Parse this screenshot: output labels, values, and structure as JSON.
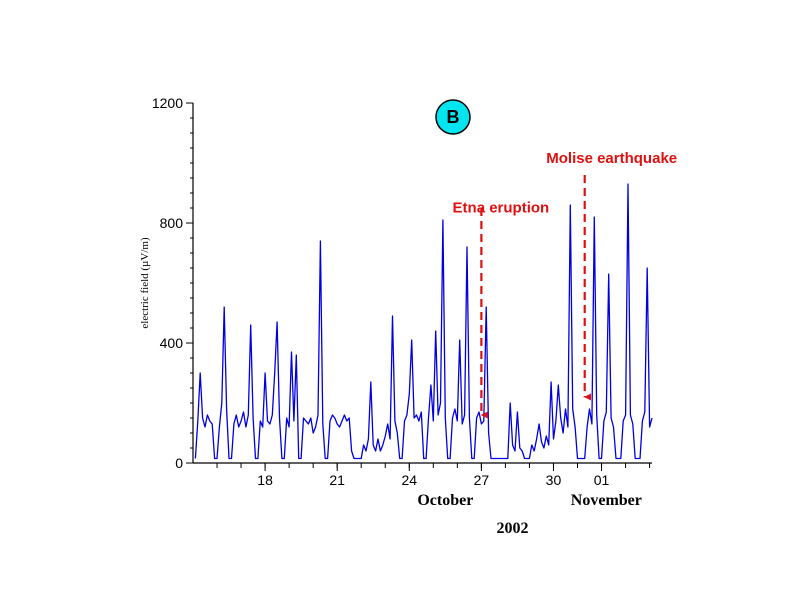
{
  "chart_data": {
    "type": "line",
    "panel_label": "B",
    "ylabel": "electric field (µV/m)",
    "ylim": [
      0,
      1200
    ],
    "yticks": [
      0,
      400,
      800,
      1200
    ],
    "xlim_day": [
      15,
      34.1
    ],
    "xticks": [
      {
        "day": 18,
        "label": "18"
      },
      {
        "day": 21,
        "label": "21"
      },
      {
        "day": 24,
        "label": "24"
      },
      {
        "day": 27,
        "label": "27"
      },
      {
        "day": 30,
        "label": "30"
      },
      {
        "day": 32,
        "label": "01"
      }
    ],
    "minor_tick_days": [
      16,
      17,
      18,
      19,
      20,
      21,
      22,
      23,
      24,
      25,
      26,
      27,
      28,
      29,
      30,
      31,
      32,
      33,
      34
    ],
    "month_labels": [
      {
        "label": "October",
        "day": 25.5
      },
      {
        "label": "November",
        "day": 32.2
      }
    ],
    "year_label": "2002",
    "series": [
      {
        "color": "#0000e0",
        "points": [
          [
            15.1,
            15
          ],
          [
            15.2,
            140
          ],
          [
            15.3,
            300
          ],
          [
            15.4,
            150
          ],
          [
            15.5,
            120
          ],
          [
            15.6,
            160
          ],
          [
            15.7,
            140
          ],
          [
            15.8,
            130
          ],
          [
            15.9,
            15
          ],
          [
            16.0,
            15
          ],
          [
            16.1,
            120
          ],
          [
            16.2,
            200
          ],
          [
            16.3,
            520
          ],
          [
            16.4,
            180
          ],
          [
            16.5,
            15
          ],
          [
            16.6,
            15
          ],
          [
            16.7,
            130
          ],
          [
            16.8,
            160
          ],
          [
            16.9,
            120
          ],
          [
            17.0,
            140
          ],
          [
            17.1,
            170
          ],
          [
            17.2,
            120
          ],
          [
            17.3,
            160
          ],
          [
            17.4,
            460
          ],
          [
            17.5,
            150
          ],
          [
            17.6,
            15
          ],
          [
            17.7,
            15
          ],
          [
            17.8,
            140
          ],
          [
            17.9,
            120
          ],
          [
            18.0,
            300
          ],
          [
            18.1,
            140
          ],
          [
            18.2,
            130
          ],
          [
            18.3,
            160
          ],
          [
            18.4,
            300
          ],
          [
            18.5,
            470
          ],
          [
            18.6,
            150
          ],
          [
            18.7,
            15
          ],
          [
            18.8,
            15
          ],
          [
            18.9,
            150
          ],
          [
            19.0,
            120
          ],
          [
            19.1,
            370
          ],
          [
            19.2,
            140
          ],
          [
            19.3,
            360
          ],
          [
            19.4,
            15
          ],
          [
            19.5,
            15
          ],
          [
            19.6,
            150
          ],
          [
            19.7,
            140
          ],
          [
            19.8,
            130
          ],
          [
            19.9,
            150
          ],
          [
            20.0,
            100
          ],
          [
            20.1,
            120
          ],
          [
            20.2,
            160
          ],
          [
            20.3,
            740
          ],
          [
            20.4,
            130
          ],
          [
            20.5,
            15
          ],
          [
            20.6,
            15
          ],
          [
            20.7,
            140
          ],
          [
            20.8,
            160
          ],
          [
            20.9,
            150
          ],
          [
            21.0,
            130
          ],
          [
            21.1,
            120
          ],
          [
            21.2,
            140
          ],
          [
            21.3,
            160
          ],
          [
            21.4,
            140
          ],
          [
            21.5,
            150
          ],
          [
            21.6,
            40
          ],
          [
            21.7,
            15
          ],
          [
            21.8,
            15
          ],
          [
            21.9,
            15
          ],
          [
            22.0,
            15
          ],
          [
            22.1,
            60
          ],
          [
            22.2,
            40
          ],
          [
            22.3,
            80
          ],
          [
            22.4,
            270
          ],
          [
            22.5,
            60
          ],
          [
            22.6,
            40
          ],
          [
            22.7,
            80
          ],
          [
            22.8,
            40
          ],
          [
            22.9,
            60
          ],
          [
            23.0,
            90
          ],
          [
            23.1,
            130
          ],
          [
            23.2,
            80
          ],
          [
            23.3,
            490
          ],
          [
            23.4,
            140
          ],
          [
            23.5,
            100
          ],
          [
            23.6,
            15
          ],
          [
            23.7,
            15
          ],
          [
            23.8,
            140
          ],
          [
            23.9,
            160
          ],
          [
            24.0,
            230
          ],
          [
            24.1,
            410
          ],
          [
            24.2,
            150
          ],
          [
            24.3,
            160
          ],
          [
            24.4,
            140
          ],
          [
            24.5,
            170
          ],
          [
            24.6,
            15
          ],
          [
            24.7,
            15
          ],
          [
            24.8,
            150
          ],
          [
            24.9,
            260
          ],
          [
            25.0,
            140
          ],
          [
            25.1,
            440
          ],
          [
            25.2,
            160
          ],
          [
            25.3,
            200
          ],
          [
            25.4,
            810
          ],
          [
            25.5,
            150
          ],
          [
            25.6,
            15
          ],
          [
            25.7,
            15
          ],
          [
            25.8,
            150
          ],
          [
            25.9,
            180
          ],
          [
            26.0,
            140
          ],
          [
            26.1,
            410
          ],
          [
            26.2,
            130
          ],
          [
            26.3,
            160
          ],
          [
            26.4,
            720
          ],
          [
            26.5,
            150
          ],
          [
            26.6,
            15
          ],
          [
            26.7,
            15
          ],
          [
            26.8,
            150
          ],
          [
            26.9,
            170
          ],
          [
            27.0,
            130
          ],
          [
            27.1,
            140
          ],
          [
            27.2,
            520
          ],
          [
            27.3,
            100
          ],
          [
            27.4,
            15
          ],
          [
            27.5,
            15
          ],
          [
            27.6,
            15
          ],
          [
            27.7,
            15
          ],
          [
            27.8,
            15
          ],
          [
            27.9,
            15
          ],
          [
            28.0,
            15
          ],
          [
            28.1,
            15
          ],
          [
            28.2,
            200
          ],
          [
            28.3,
            60
          ],
          [
            28.4,
            40
          ],
          [
            28.5,
            170
          ],
          [
            28.6,
            50
          ],
          [
            28.7,
            40
          ],
          [
            28.8,
            15
          ],
          [
            28.9,
            15
          ],
          [
            29.0,
            15
          ],
          [
            29.1,
            60
          ],
          [
            29.2,
            40
          ],
          [
            29.3,
            80
          ],
          [
            29.4,
            130
          ],
          [
            29.5,
            70
          ],
          [
            29.6,
            50
          ],
          [
            29.7,
            90
          ],
          [
            29.8,
            60
          ],
          [
            29.9,
            270
          ],
          [
            30.0,
            80
          ],
          [
            30.1,
            140
          ],
          [
            30.2,
            260
          ],
          [
            30.3,
            150
          ],
          [
            30.4,
            100
          ],
          [
            30.5,
            180
          ],
          [
            30.6,
            120
          ],
          [
            30.7,
            860
          ],
          [
            30.8,
            180
          ],
          [
            30.9,
            120
          ],
          [
            31.0,
            15
          ],
          [
            31.1,
            15
          ],
          [
            31.2,
            15
          ],
          [
            31.3,
            15
          ],
          [
            31.4,
            120
          ],
          [
            31.5,
            180
          ],
          [
            31.6,
            130
          ],
          [
            31.7,
            820
          ],
          [
            31.8,
            160
          ],
          [
            31.9,
            15
          ],
          [
            32.0,
            15
          ],
          [
            32.1,
            140
          ],
          [
            32.2,
            170
          ],
          [
            32.3,
            630
          ],
          [
            32.4,
            150
          ],
          [
            32.5,
            120
          ],
          [
            32.6,
            15
          ],
          [
            32.7,
            15
          ],
          [
            32.8,
            15
          ],
          [
            32.9,
            140
          ],
          [
            33.0,
            160
          ],
          [
            33.1,
            930
          ],
          [
            33.2,
            160
          ],
          [
            33.3,
            130
          ],
          [
            33.4,
            15
          ],
          [
            33.5,
            15
          ],
          [
            33.6,
            15
          ],
          [
            33.7,
            140
          ],
          [
            33.8,
            170
          ],
          [
            33.9,
            650
          ],
          [
            34.0,
            120
          ],
          [
            34.1,
            150
          ]
        ]
      }
    ],
    "annotations": [
      {
        "text": "Etna eruption",
        "label_day": 25.8,
        "label_value": 835,
        "arrow_day": 27.0,
        "arrow_from": 850,
        "arrow_to": 160
      },
      {
        "text": "Molise earthquake",
        "label_day": 29.7,
        "label_value": 1000,
        "arrow_day": 31.3,
        "arrow_from": 960,
        "arrow_to": 220
      }
    ],
    "annotation_color": "#e01010",
    "badge_color": "#00e5f0"
  }
}
